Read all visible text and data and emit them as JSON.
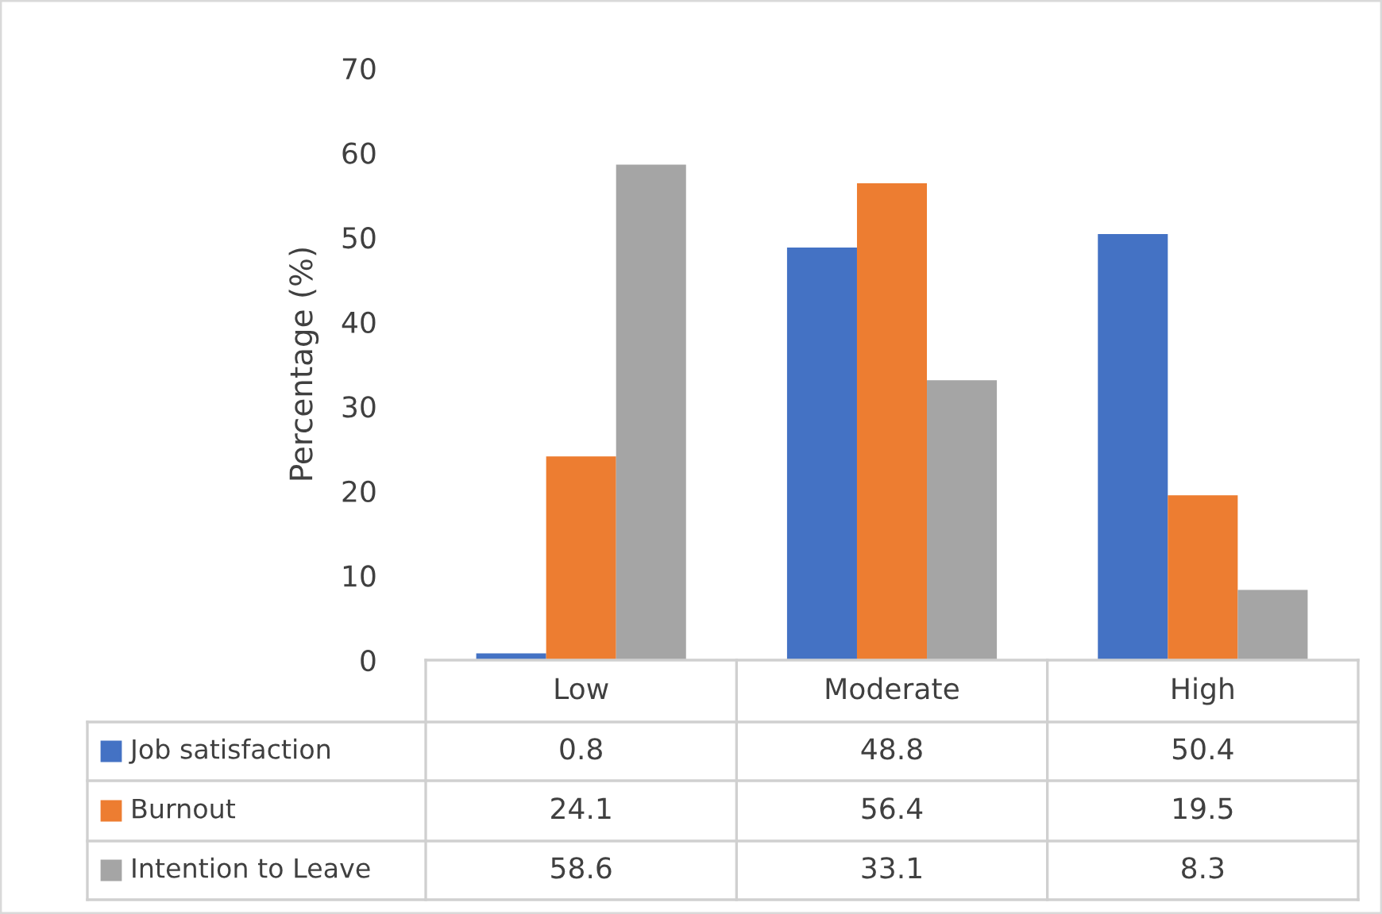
{
  "chart_data": {
    "type": "bar",
    "ylabel": "Percentage (%)",
    "categories": [
      "Low",
      "Moderate",
      "High"
    ],
    "series": [
      {
        "name": "Job satisfaction",
        "color": "#4472c4",
        "values": [
          0.8,
          48.8,
          50.4
        ]
      },
      {
        "name": "Burnout",
        "color": "#ed7d31",
        "values": [
          24.1,
          56.4,
          19.5
        ]
      },
      {
        "name": "Intention to Leave",
        "color": "#a5a5a5",
        "values": [
          58.6,
          33.1,
          8.3
        ]
      }
    ],
    "ylim": [
      0,
      70
    ],
    "yticks": [
      0,
      10,
      20,
      30,
      40,
      50,
      60,
      70
    ],
    "grid": false,
    "legend": "bottom left",
    "data_labels": true
  }
}
